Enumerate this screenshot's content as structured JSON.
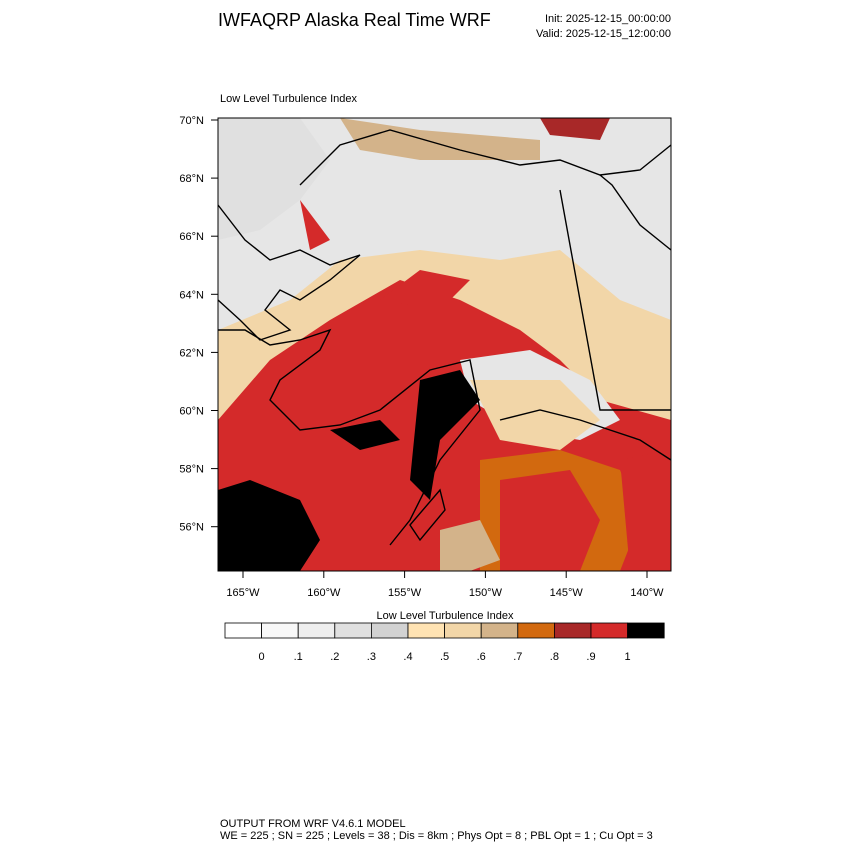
{
  "header": {
    "title": "IWFAQRP Alaska Real Time WRF",
    "init": "Init: 2025-12-15_00:00:00",
    "valid": "Valid: 2025-12-15_12:00:00"
  },
  "map": {
    "title": "Low Level Turbulence Index",
    "lat_labels": [
      "70°N",
      "68°N",
      "66°N",
      "64°N",
      "62°N",
      "60°N",
      "58°N",
      "56°N"
    ],
    "lon_labels": [
      "165°W",
      "160°W",
      "155°W",
      "150°W",
      "145°W",
      "140°W"
    ]
  },
  "colorbar": {
    "title": "Low Level Turbulence Index",
    "colors": [
      "#ffffff",
      "#f8f8f8",
      "#eeeeee",
      "#e0e0e0",
      "#d2d2d2",
      "#ffe3b3",
      "#f2d6a8",
      "#d3b38a",
      "#d2690f",
      "#a82828",
      "#d42a2a",
      "#000000"
    ],
    "ticks": [
      0,
      {
        "value": 0.1,
        "label": ".1"
      },
      {
        "value": 0.2,
        "label": ".2"
      },
      {
        "value": 0.3,
        "label": ".3"
      },
      {
        "value": 0.4,
        "label": ".4"
      },
      {
        "value": 0.5,
        "label": ".5"
      },
      {
        "value": 0.6,
        "label": ".6"
      },
      {
        "value": 0.7,
        "label": ".7"
      },
      {
        "value": 0.8,
        "label": ".8"
      },
      {
        "value": 0.9,
        "label": ".9"
      },
      1
    ]
  },
  "footer": {
    "line1": "OUTPUT FROM WRF V4.6.1 MODEL",
    "line2": "WE = 225 ; SN = 225 ; Levels = 38 ; Dis = 8km ; Phys Opt = 8 ; PBL Opt = 1 ; Cu Opt = 3"
  }
}
